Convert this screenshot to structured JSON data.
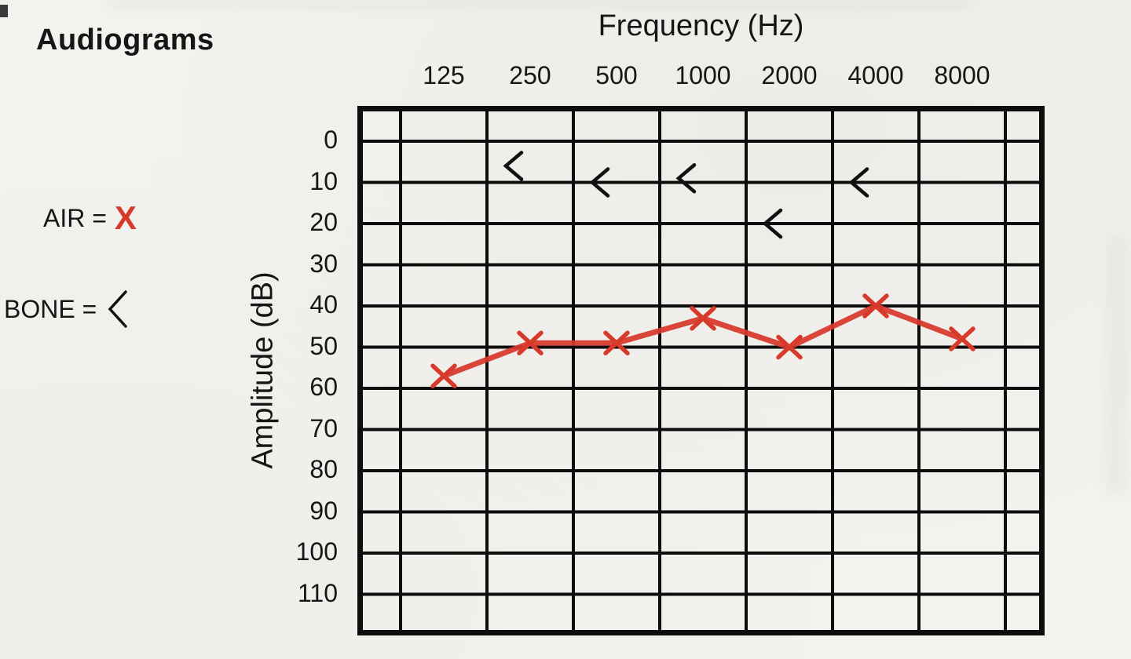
{
  "title": "Audiograms",
  "legend": {
    "air_label": "AIR =",
    "air_symbol": "X",
    "bone_label": "BONE =",
    "bone_symbol": "<"
  },
  "chart_data": {
    "type": "line",
    "title": "Audiograms",
    "xlabel": "Frequency (Hz)",
    "ylabel": "Amplitude (dB)",
    "categories": [
      "125",
      "250",
      "500",
      "1000",
      "2000",
      "4000",
      "8000"
    ],
    "y_ticks": [
      0,
      10,
      20,
      30,
      40,
      50,
      60,
      70,
      80,
      90,
      100,
      110
    ],
    "ylim": [
      0,
      110
    ],
    "y_axis_inverted": true,
    "grid": true,
    "legend_position": "left",
    "series": [
      {
        "name": "AIR",
        "marker": "X",
        "color": "#d7392b",
        "values": [
          57,
          49,
          49,
          43,
          50,
          40,
          48
        ]
      },
      {
        "name": "BONE",
        "marker": "<",
        "color": "#111111",
        "points": [
          {
            "freq": "250",
            "db": 6
          },
          {
            "freq": "500",
            "db": 10
          },
          {
            "freq": "1000",
            "db": 9
          },
          {
            "freq": "2000",
            "db": 20
          },
          {
            "freq": "4000",
            "db": 10
          }
        ]
      }
    ],
    "colors": {
      "air": "#d7392b",
      "bone": "#111111",
      "grid": "#0d0d0d"
    }
  }
}
